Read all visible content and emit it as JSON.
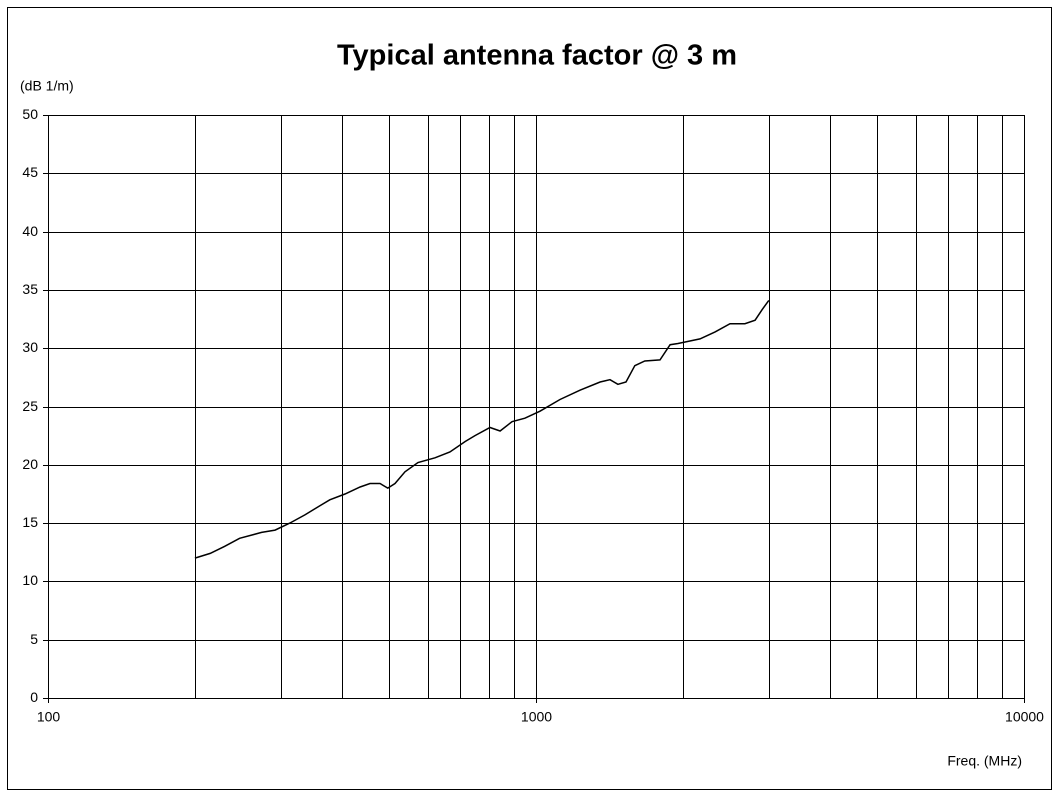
{
  "chart_data": {
    "type": "line",
    "title": "Typical antenna factor @ 3 m",
    "ylabel": "(dB 1/m)",
    "xlabel": "Freq. (MHz)",
    "xscale": "log",
    "grid": true,
    "xlim": [
      100,
      10000
    ],
    "xticks": [
      100,
      1000,
      10000
    ],
    "xminor_ticks": [
      200,
      300,
      400,
      500,
      600,
      700,
      800,
      900,
      2000,
      3000,
      4000,
      5000,
      6000,
      7000,
      8000,
      9000
    ],
    "ylim": [
      0,
      50
    ],
    "yticks": [
      0,
      5,
      10,
      15,
      20,
      25,
      30,
      35,
      40,
      45,
      50
    ],
    "x": [
      200,
      215,
      230,
      247,
      274,
      292,
      313,
      336,
      361,
      378,
      406,
      436,
      457,
      479,
      497,
      514,
      539,
      573,
      621,
      666,
      716,
      750,
      805,
      844,
      893,
      949,
      1019,
      1120,
      1231,
      1353,
      1418,
      1472,
      1529,
      1594,
      1671,
      1795,
      1883,
      1954,
      2168,
      2328,
      2498,
      2680,
      2812,
      2906,
      3000
    ],
    "series": [
      {
        "color": "#000000",
        "values": [
          12.0,
          12.4,
          13.0,
          13.7,
          14.2,
          14.4,
          15.0,
          15.7,
          16.5,
          17.0,
          17.5,
          18.1,
          18.4,
          18.4,
          18.0,
          18.4,
          19.4,
          20.2,
          20.6,
          21.1,
          22.0,
          22.5,
          23.2,
          22.9,
          23.7,
          24.0,
          24.6,
          25.6,
          26.4,
          27.1,
          27.3,
          26.9,
          27.1,
          28.5,
          28.9,
          29.0,
          30.3,
          30.4,
          30.8,
          31.4,
          32.1,
          32.1,
          32.4,
          33.3,
          34.1
        ]
      }
    ]
  }
}
